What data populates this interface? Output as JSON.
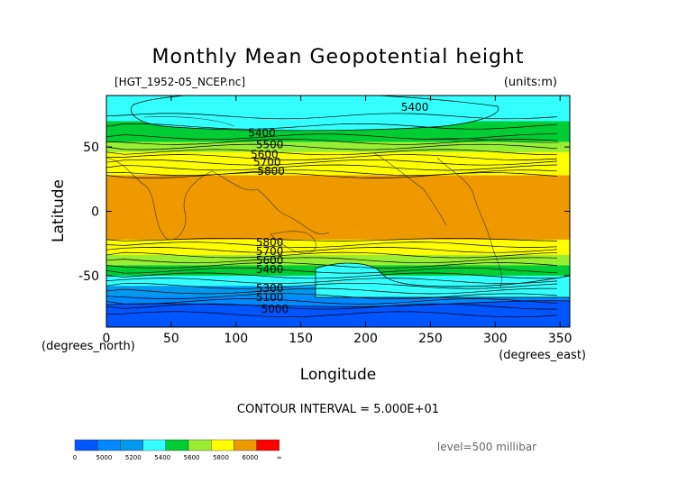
{
  "chart_data": {
    "type": "contour",
    "title": "Monthly Mean Geopotential height",
    "file_label": "[HGT_1952-05_NCEP.nc]",
    "units_label": "(units:m)",
    "xlabel": "Longitude",
    "ylabel": "Latitude",
    "x_unit_label": "(degrees_east)",
    "y_unit_label": "(degrees_north)",
    "xlim": [
      0,
      357.5
    ],
    "ylim": [
      -90,
      90
    ],
    "x_ticks": [
      0,
      50,
      100,
      150,
      200,
      250,
      300,
      350
    ],
    "y_ticks": [
      50,
      0,
      -50
    ],
    "contour_interval_text": "CONTOUR INTERVAL = 5.000E+01",
    "level_text": "level=500 millibar",
    "contour_labels": [
      {
        "value": "5400",
        "lon": 238,
        "lat": 81
      },
      {
        "value": "5400",
        "lon": 120,
        "lat": 61
      },
      {
        "value": "5500",
        "lon": 126,
        "lat": 52
      },
      {
        "value": "5600",
        "lon": 122,
        "lat": 44
      },
      {
        "value": "5700",
        "lon": 124,
        "lat": 38
      },
      {
        "value": "5800",
        "lon": 127,
        "lat": 31
      },
      {
        "value": "5800",
        "lon": 126,
        "lat": -24
      },
      {
        "value": "5700",
        "lon": 126,
        "lat": -31
      },
      {
        "value": "5600",
        "lon": 126,
        "lat": -38
      },
      {
        "value": "5400",
        "lon": 126,
        "lat": -45
      },
      {
        "value": "5300",
        "lon": 126,
        "lat": -60
      },
      {
        "value": "5100",
        "lon": 126,
        "lat": -67
      },
      {
        "value": "5000",
        "lon": 130,
        "lat": -76
      }
    ],
    "bands": [
      {
        "from_lat": 90,
        "to_lat": 70,
        "color": "#33ffff"
      },
      {
        "from_lat": 70,
        "to_lat": 54,
        "color": "#00cc33"
      },
      {
        "from_lat": 54,
        "to_lat": 46,
        "color": "#99ee33"
      },
      {
        "from_lat": 46,
        "to_lat": 28,
        "color": "#ffff00"
      },
      {
        "from_lat": 28,
        "to_lat": -22,
        "color": "#ee9900"
      },
      {
        "from_lat": -22,
        "to_lat": -34,
        "color": "#ffff00"
      },
      {
        "from_lat": -34,
        "to_lat": -42,
        "color": "#99ee33"
      },
      {
        "from_lat": -42,
        "to_lat": -50,
        "color": "#00cc33"
      },
      {
        "from_lat": -50,
        "to_lat": -58,
        "color": "#33ffff"
      },
      {
        "from_lat": -58,
        "to_lat": -66,
        "color": "#0099ee"
      },
      {
        "from_lat": -66,
        "to_lat": -74,
        "color": "#0088ff"
      },
      {
        "from_lat": -74,
        "to_lat": -90,
        "color": "#0055ff"
      }
    ],
    "colorbar": {
      "colors": [
        "#0055ff",
        "#0088ff",
        "#0099ee",
        "#33ffff",
        "#00cc33",
        "#99ee33",
        "#ffff00",
        "#ee9900",
        "#ff0000"
      ],
      "labels": [
        "0",
        "5000",
        "5200",
        "5400",
        "5600",
        "5800",
        "6000",
        "∞"
      ]
    }
  }
}
